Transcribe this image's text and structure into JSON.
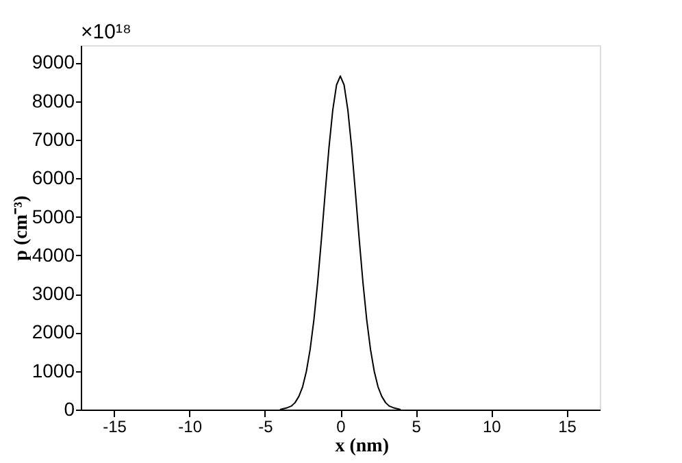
{
  "chart_data": {
    "type": "line",
    "xlabel": "x (nm)",
    "ylabel": "p (cm⁻³)",
    "annotations": [
      "×10¹⁸"
    ],
    "x": [
      -4,
      -3.5,
      -3.25,
      -3,
      -2.75,
      -2.5,
      -2.25,
      -2,
      -1.75,
      -1.5,
      -1.25,
      -1,
      -0.75,
      -0.5,
      -0.25,
      0,
      0.25,
      0.5,
      0.75,
      1,
      1.25,
      1.5,
      1.75,
      2,
      2.25,
      2.5,
      2.75,
      3,
      3.25,
      3.5,
      4
    ],
    "series": [
      {
        "color": "#000000",
        "values": [
          0,
          50,
          90,
          180,
          340,
          590,
          990,
          1560,
          2330,
          3300,
          4430,
          5640,
          6800,
          7770,
          8420,
          8650,
          8420,
          7770,
          6800,
          5640,
          4430,
          3300,
          2330,
          1560,
          990,
          590,
          340,
          180,
          90,
          50,
          0
        ]
      }
    ],
    "xlim": [
      -17.2,
      17.2
    ],
    "ylim": [
      0,
      9450
    ],
    "xticks": [
      -15,
      -10,
      -5,
      0,
      5,
      10,
      15
    ],
    "yticks": [
      0,
      1000,
      2000,
      3000,
      4000,
      5000,
      6000,
      7000,
      8000,
      9000
    ],
    "grid": false,
    "marker": "none",
    "line_style": "solid"
  }
}
